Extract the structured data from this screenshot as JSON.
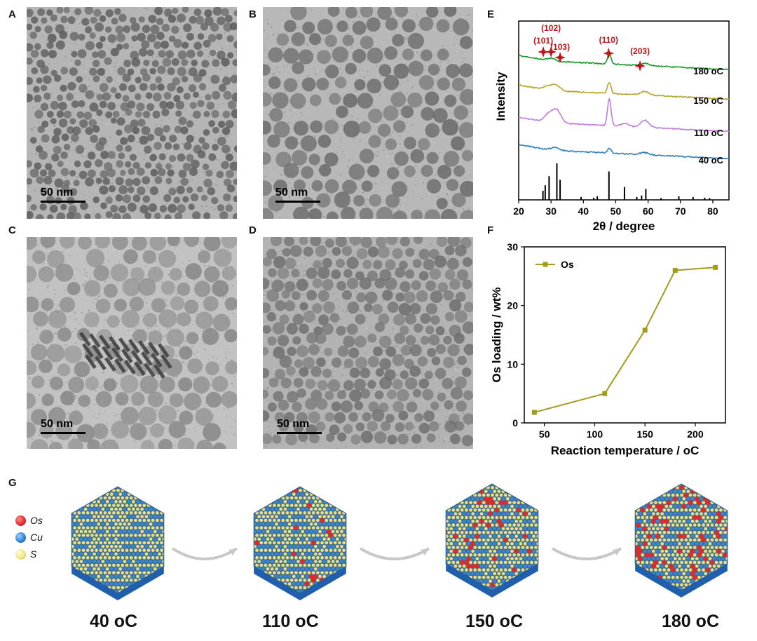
{
  "panels": {
    "A": {
      "label": "A",
      "scale": "50 nm"
    },
    "B": {
      "label": "B",
      "scale": "50 nm"
    },
    "C": {
      "label": "C",
      "scale": "50 nm"
    },
    "D": {
      "label": "D",
      "scale": "50 nm"
    },
    "E": {
      "label": "E"
    },
    "F": {
      "label": "F"
    },
    "G": {
      "label": "G"
    }
  },
  "chart_data": [
    {
      "type": "line",
      "panel": "E",
      "xlabel": "2θ / degree",
      "ylabel": "Intensity",
      "xlim": [
        20,
        85
      ],
      "xticks": [
        20,
        30,
        40,
        50,
        60,
        70,
        80
      ],
      "series": [
        {
          "name": "180 oC",
          "color": "#1a9a2a",
          "offset": 4
        },
        {
          "name": "150 oC",
          "color": "#b5a52a",
          "offset": 3
        },
        {
          "name": "110 oC",
          "color": "#c07ee0",
          "offset": 2
        },
        {
          "name": "40 oC",
          "color": "#2f7fc0",
          "offset": 1
        }
      ],
      "reference_peaks": [
        {
          "x": 27.5,
          "h": 0.25
        },
        {
          "x": 28.2,
          "h": 0.4
        },
        {
          "x": 29.4,
          "h": 0.65
        },
        {
          "x": 31.8,
          "h": 1.0
        },
        {
          "x": 32.8,
          "h": 0.55
        },
        {
          "x": 39.3,
          "h": 0.08
        },
        {
          "x": 43.2,
          "h": 0.06
        },
        {
          "x": 44.3,
          "h": 0.1
        },
        {
          "x": 47.9,
          "h": 0.78
        },
        {
          "x": 52.7,
          "h": 0.35
        },
        {
          "x": 56.5,
          "h": 0.08
        },
        {
          "x": 58.0,
          "h": 0.12
        },
        {
          "x": 59.3,
          "h": 0.3
        },
        {
          "x": 64.0,
          "h": 0.05
        },
        {
          "x": 69.5,
          "h": 0.1
        },
        {
          "x": 73.9,
          "h": 0.08
        },
        {
          "x": 77.5,
          "h": 0.06
        },
        {
          "x": 79.0,
          "h": 0.05
        }
      ],
      "annotations": [
        {
          "text": "(101)",
          "x": 27.6
        },
        {
          "text": "(102)",
          "x": 30.0
        },
        {
          "text": "(103)",
          "x": 32.8
        },
        {
          "text": "(110)",
          "x": 47.8
        },
        {
          "text": "(203)",
          "x": 57.5
        }
      ],
      "annotation_color": "#c0131a"
    },
    {
      "type": "line",
      "panel": "F",
      "xlabel": "Reaction temperature / oC",
      "ylabel": "Os loading / wt%",
      "xlim": [
        30,
        230
      ],
      "ylim": [
        0,
        30
      ],
      "xticks": [
        50,
        100,
        150,
        200
      ],
      "yticks": [
        0,
        10,
        20,
        30
      ],
      "series": [
        {
          "name": "Os",
          "color": "#a39b1c",
          "x": [
            40,
            110,
            150,
            180,
            220
          ],
          "y": [
            1.8,
            5.0,
            15.8,
            26.0,
            26.5
          ]
        }
      ],
      "legend": "top-left"
    }
  ],
  "schematic": {
    "legend": [
      {
        "name": "Os",
        "color": "#e02a2a"
      },
      {
        "name": "Cu",
        "color": "#2a7fd8"
      },
      {
        "name": "S",
        "color": "#f3e27a"
      }
    ],
    "stages": [
      {
        "temp": "40",
        "unit": "oC",
        "os_fraction": 0
      },
      {
        "temp": "110",
        "unit": "oC",
        "os_fraction": 0.03
      },
      {
        "temp": "150",
        "unit": "oC",
        "os_fraction": 0.07
      },
      {
        "temp": "180",
        "unit": "oC",
        "os_fraction": 0.15
      }
    ]
  }
}
